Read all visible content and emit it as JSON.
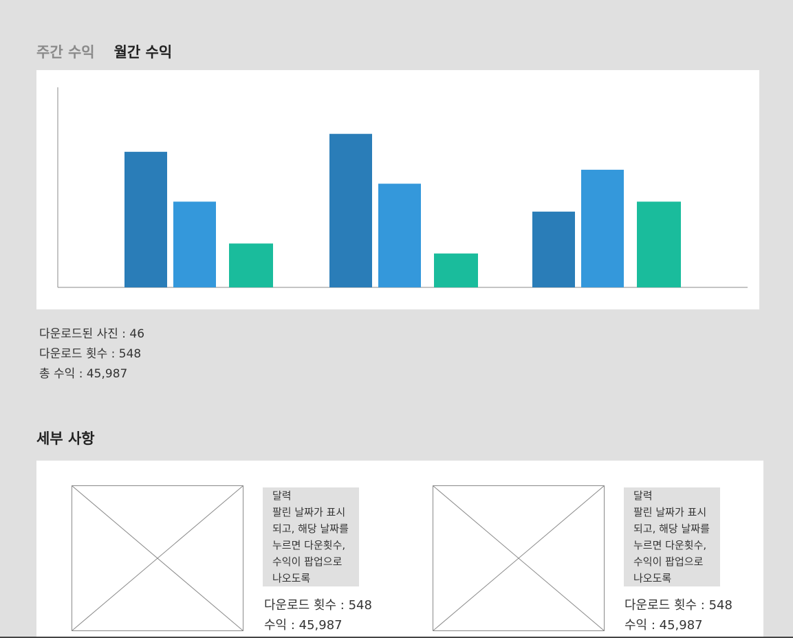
{
  "tabs": {
    "weekly_label": "주간 수익",
    "monthly_label": "월간 수익"
  },
  "chart_data": {
    "type": "bar",
    "title": "",
    "xlabel": "",
    "ylabel": "",
    "categories": [
      "",
      "",
      ""
    ],
    "series": [
      {
        "values": [
          68,
          77,
          38
        ],
        "color": "#2a7db8"
      },
      {
        "values": [
          43,
          52,
          59
        ],
        "color": "#3498db"
      },
      {
        "values": [
          22,
          17,
          43
        ],
        "color": "#1abc9c"
      }
    ],
    "ylim": [
      0,
      100
    ],
    "grid": false,
    "legend": "none"
  },
  "summary": {
    "downloaded_photos": "다운로드된 사진 : 46",
    "download_count": "다운로드 횟수 : 548",
    "total_revenue": "총 수익 : 45,987"
  },
  "details": {
    "title": "세부 사항",
    "cards": [
      {
        "note_lines": [
          "달력",
          "팔린 날짜가 표시",
          "되고, 해당 날짜를",
          "누르면 다운횟수,",
          "수익이 팝업으로",
          "나오도록"
        ],
        "download_count": "다운로드 횟수 : 548",
        "revenue": "수익 : 45,987"
      },
      {
        "note_lines": [
          "달력",
          "팔린 날짜가 표시",
          "되고, 해당 날짜를",
          "누르면 다운횟수,",
          "수익이 팝업으로",
          "나오도록"
        ],
        "download_count": "다운로드 횟수 : 548",
        "revenue": "수익 : 45,987"
      }
    ]
  }
}
